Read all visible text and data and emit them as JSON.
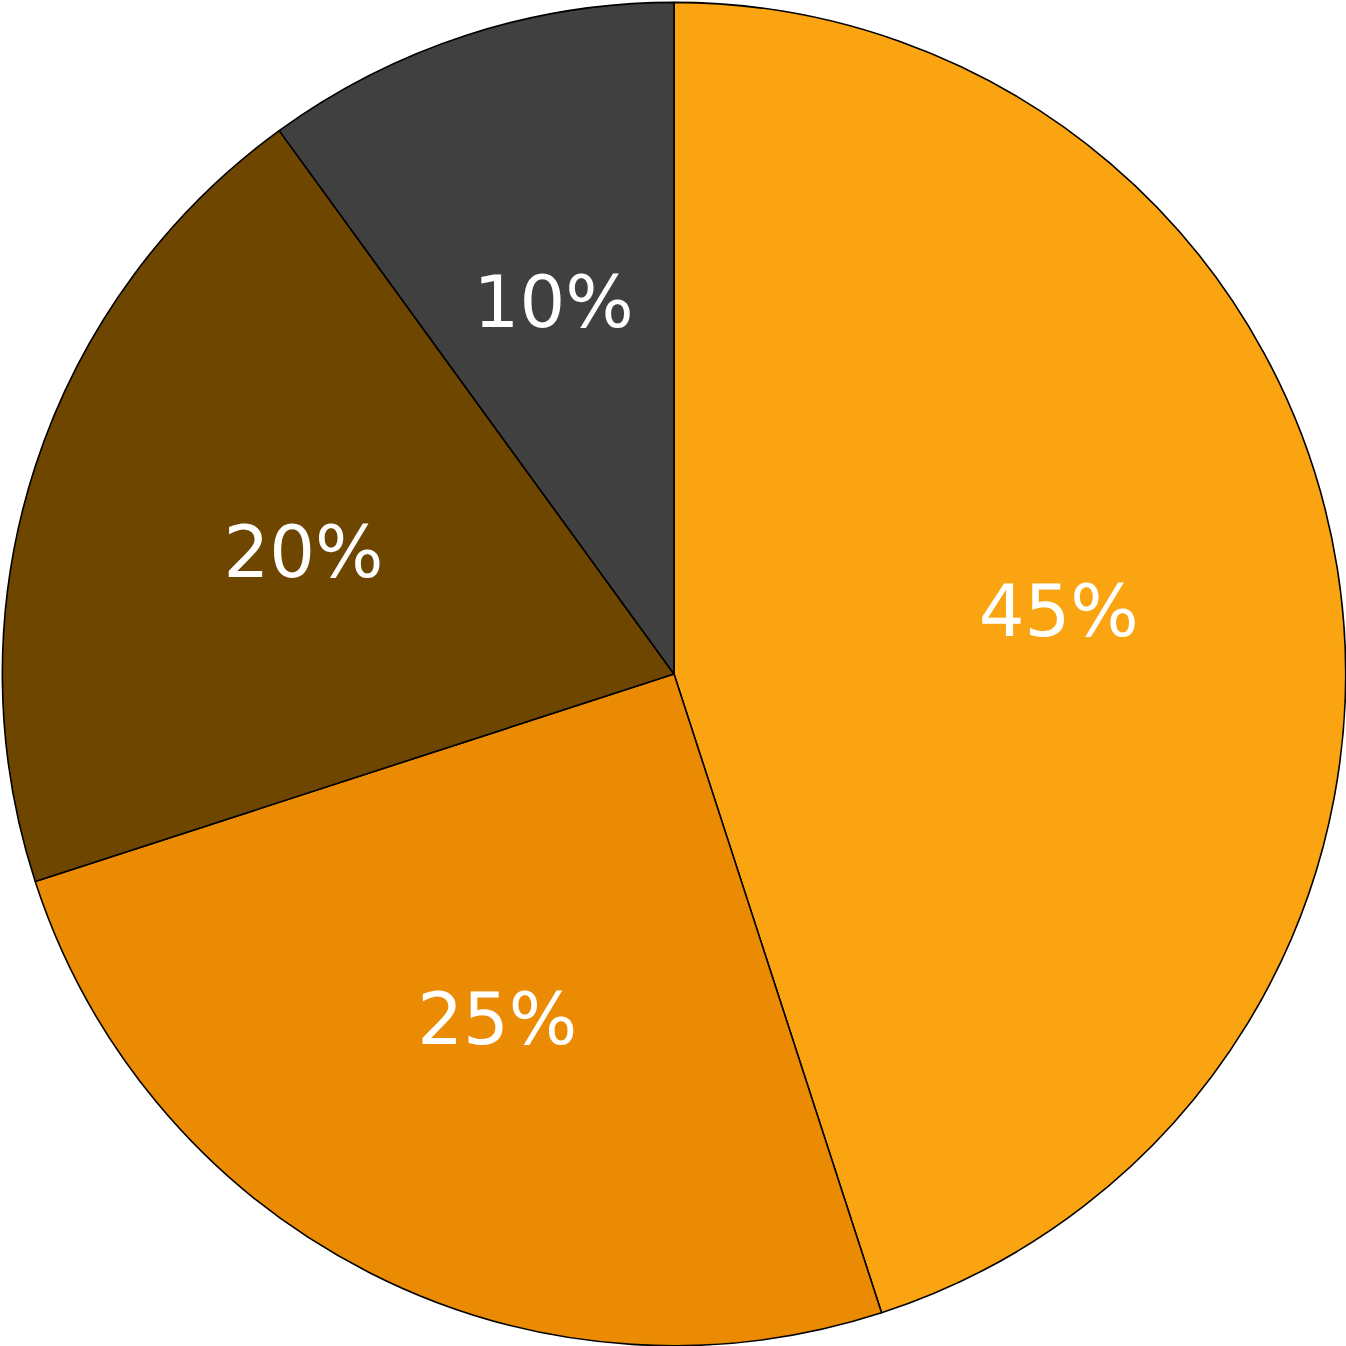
{
  "chart_data": {
    "type": "pie",
    "categories": [
      null,
      null,
      null,
      null
    ],
    "values": [
      45,
      25,
      20,
      10
    ],
    "colors": [
      "#fba412",
      "#eb8b04",
      "#6e4600",
      "#404040"
    ],
    "value_labels": [
      "45%",
      "25%",
      "20%",
      "10%"
    ]
  }
}
